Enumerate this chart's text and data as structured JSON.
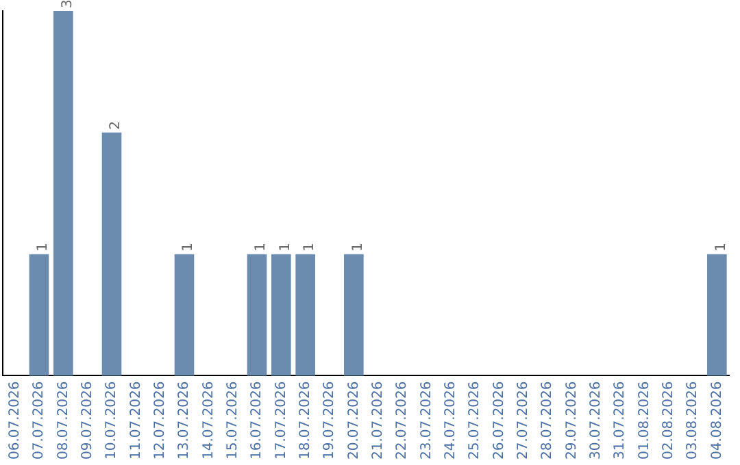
{
  "chart_data": {
    "type": "bar",
    "categories": [
      "06.07.2026",
      "07.07.2026",
      "08.07.2026",
      "09.07.2026",
      "10.07.2026",
      "11.07.2026",
      "12.07.2026",
      "13.07.2026",
      "14.07.2026",
      "15.07.2026",
      "16.07.2026",
      "17.07.2026",
      "18.07.2026",
      "19.07.2026",
      "20.07.2026",
      "21.07.2026",
      "22.07.2026",
      "23.07.2026",
      "24.07.2026",
      "25.07.2026",
      "26.07.2026",
      "27.07.2026",
      "28.07.2026",
      "29.07.2026",
      "30.07.2026",
      "31.07.2026",
      "01.08.2026",
      "02.08.2026",
      "03.08.2026",
      "04.08.2026"
    ],
    "values": [
      0,
      1,
      3,
      0,
      2,
      0,
      0,
      1,
      0,
      0,
      1,
      1,
      1,
      0,
      1,
      0,
      0,
      0,
      0,
      0,
      0,
      0,
      0,
      0,
      0,
      0,
      0,
      0,
      0,
      1
    ],
    "value_labels": [
      null,
      "1",
      "3",
      null,
      "2",
      null,
      null,
      "1",
      null,
      null,
      "1",
      "1",
      "1",
      null,
      "1",
      null,
      null,
      null,
      null,
      null,
      null,
      null,
      null,
      null,
      null,
      null,
      null,
      null,
      null,
      "1"
    ],
    "color": "#6b8cae",
    "grid": false,
    "legend": false,
    "tick_labels": "x"
  }
}
